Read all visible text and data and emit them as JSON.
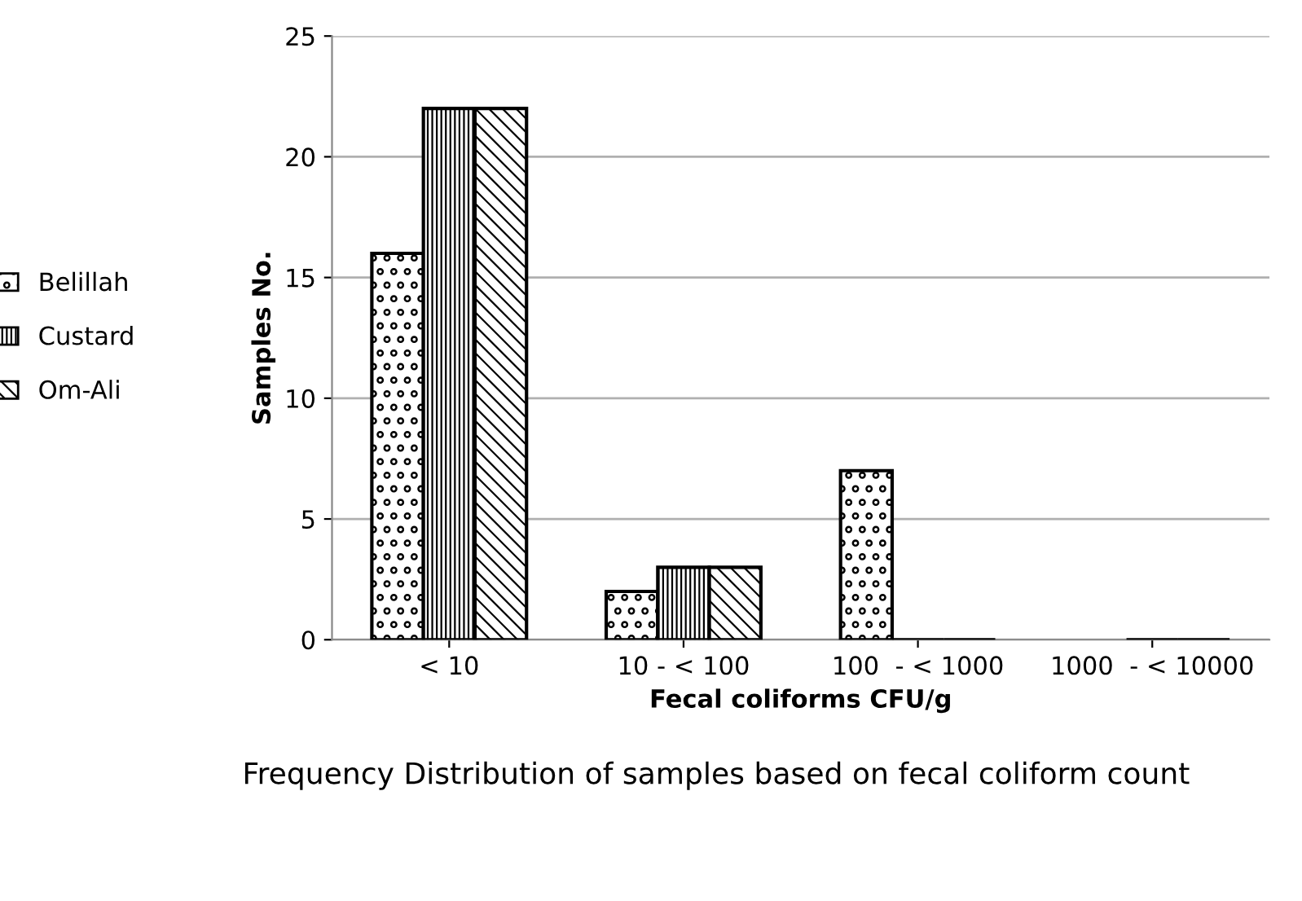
{
  "chart_data": {
    "type": "bar",
    "title": "Frequency Distribution of samples based on fecal coliform count",
    "xlabel": "Fecal coliforms CFU/g",
    "ylabel": "Samples No.",
    "categories": [
      "< 10",
      "10 - < 100",
      "100  - < 1000",
      "1000  - < 10000"
    ],
    "series": [
      {
        "name": "Belillah",
        "color": "#000000",
        "values": [
          16,
          2,
          7,
          null
        ]
      },
      {
        "name": "Custard",
        "color": "#000000",
        "values": [
          22,
          3,
          0,
          0
        ]
      },
      {
        "name": "Om-Ali",
        "color": "#000000",
        "values": [
          22,
          3,
          0,
          0
        ]
      }
    ],
    "ylim": [
      0,
      25
    ],
    "yticks": [
      0,
      5,
      10,
      15,
      20,
      25
    ],
    "grid": "y",
    "legend": "left"
  }
}
